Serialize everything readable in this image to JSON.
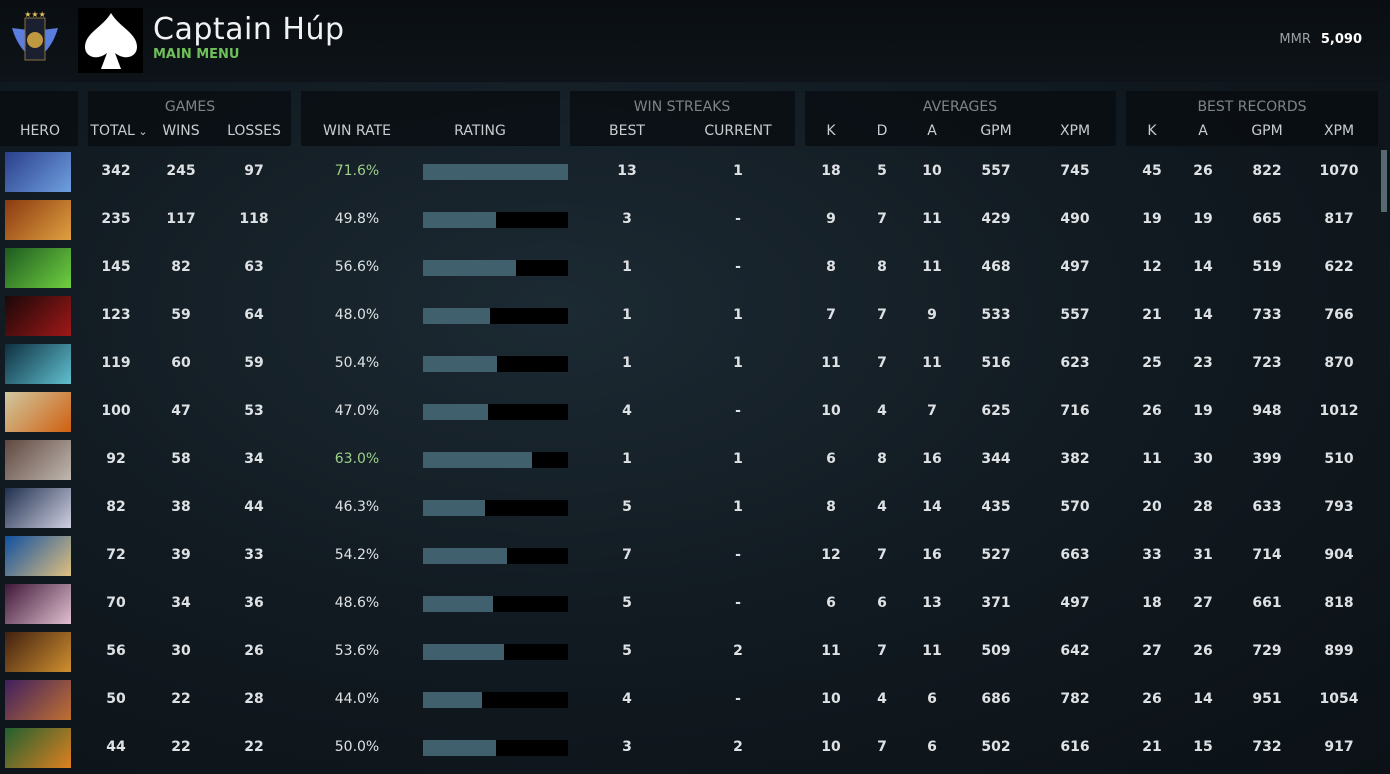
{
  "header": {
    "player_name": "Captain Húp",
    "subtitle": "MAIN MENU",
    "mmr_label": "MMR",
    "mmr_value": "5,090",
    "rank_icon": "immortal-medal-icon",
    "avatar_icon": "spade-icon"
  },
  "groups": {
    "games": "GAMES",
    "win_streaks": "WIN STREAKS",
    "averages": "AVERAGES",
    "best_records": "BEST RECORDS"
  },
  "columns": {
    "hero": "HERO",
    "total": "TOTAL",
    "wins": "WINS",
    "losses": "LOSSES",
    "win_rate": "WIN RATE",
    "rating": "RATING",
    "best": "BEST",
    "current": "CURRENT",
    "k": "K",
    "d": "D",
    "a": "A",
    "gpm": "GPM",
    "xpm": "XPM",
    "bk": "K",
    "ba": "A",
    "bgpm": "GPM",
    "bxpm": "XPM"
  },
  "sort": {
    "column": "total",
    "direction": "descending"
  },
  "colors": {
    "highlight_winrate": "#9ccf8a",
    "bar_fill": "#41606e",
    "bar_bg": "#000000"
  },
  "rows": [
    {
      "colors": [
        "#2a3f8a",
        "#6fa0e0"
      ],
      "total": "342",
      "wins": "245",
      "losses": "97",
      "win_rate": "71.6%",
      "rating": 1.0,
      "hi": true,
      "best": "13",
      "current": "1",
      "k": "18",
      "d": "5",
      "a": "10",
      "gpm": "557",
      "xpm": "745",
      "bk": "45",
      "ba": "26",
      "bgpm": "822",
      "bxpm": "1070"
    },
    {
      "colors": [
        "#8a3a10",
        "#e0a040"
      ],
      "total": "235",
      "wins": "117",
      "losses": "118",
      "win_rate": "49.8%",
      "rating": 0.5,
      "best": "3",
      "current": "-",
      "k": "9",
      "d": "7",
      "a": "11",
      "gpm": "429",
      "xpm": "490",
      "bk": "19",
      "ba": "19",
      "bgpm": "665",
      "bxpm": "817"
    },
    {
      "colors": [
        "#1d5a20",
        "#70d040"
      ],
      "total": "145",
      "wins": "82",
      "losses": "63",
      "win_rate": "56.6%",
      "rating": 0.64,
      "best": "1",
      "current": "-",
      "k": "8",
      "d": "8",
      "a": "11",
      "gpm": "468",
      "xpm": "497",
      "bk": "12",
      "ba": "14",
      "bgpm": "519",
      "bxpm": "622"
    },
    {
      "colors": [
        "#1a0808",
        "#a01818"
      ],
      "total": "123",
      "wins": "59",
      "losses": "64",
      "win_rate": "48.0%",
      "rating": 0.46,
      "best": "1",
      "current": "1",
      "k": "7",
      "d": "7",
      "a": "9",
      "gpm": "533",
      "xpm": "557",
      "bk": "21",
      "ba": "14",
      "bgpm": "733",
      "bxpm": "766"
    },
    {
      "colors": [
        "#0e3040",
        "#60c0d0"
      ],
      "total": "119",
      "wins": "60",
      "losses": "59",
      "win_rate": "50.4%",
      "rating": 0.51,
      "best": "1",
      "current": "1",
      "k": "11",
      "d": "7",
      "a": "11",
      "gpm": "516",
      "xpm": "623",
      "bk": "25",
      "ba": "23",
      "bgpm": "723",
      "bxpm": "870"
    },
    {
      "colors": [
        "#d0c8a0",
        "#d06010"
      ],
      "total": "100",
      "wins": "47",
      "losses": "53",
      "win_rate": "47.0%",
      "rating": 0.45,
      "best": "4",
      "current": "-",
      "k": "10",
      "d": "4",
      "a": "7",
      "gpm": "625",
      "xpm": "716",
      "bk": "26",
      "ba": "19",
      "bgpm": "948",
      "bxpm": "1012"
    },
    {
      "colors": [
        "#604840",
        "#c0b8b0"
      ],
      "total": "92",
      "wins": "58",
      "losses": "34",
      "win_rate": "63.0%",
      "rating": 0.75,
      "hi": true,
      "best": "1",
      "current": "1",
      "k": "6",
      "d": "8",
      "a": "16",
      "gpm": "344",
      "xpm": "382",
      "bk": "11",
      "ba": "30",
      "bgpm": "399",
      "bxpm": "510"
    },
    {
      "colors": [
        "#203050",
        "#d0d0e0"
      ],
      "total": "82",
      "wins": "38",
      "losses": "44",
      "win_rate": "46.3%",
      "rating": 0.43,
      "best": "5",
      "current": "1",
      "k": "8",
      "d": "4",
      "a": "14",
      "gpm": "435",
      "xpm": "570",
      "bk": "20",
      "ba": "28",
      "bgpm": "633",
      "bxpm": "793"
    },
    {
      "colors": [
        "#1050a0",
        "#e0c080"
      ],
      "total": "72",
      "wins": "39",
      "losses": "33",
      "win_rate": "54.2%",
      "rating": 0.58,
      "best": "7",
      "current": "-",
      "k": "12",
      "d": "7",
      "a": "16",
      "gpm": "527",
      "xpm": "663",
      "bk": "33",
      "ba": "31",
      "bgpm": "714",
      "bxpm": "904"
    },
    {
      "colors": [
        "#401838",
        "#e0c0d0"
      ],
      "total": "70",
      "wins": "34",
      "losses": "36",
      "win_rate": "48.6%",
      "rating": 0.48,
      "best": "5",
      "current": "-",
      "k": "6",
      "d": "6",
      "a": "13",
      "gpm": "371",
      "xpm": "497",
      "bk": "18",
      "ba": "27",
      "bgpm": "661",
      "bxpm": "818"
    },
    {
      "colors": [
        "#402010",
        "#d09030"
      ],
      "total": "56",
      "wins": "30",
      "losses": "26",
      "win_rate": "53.6%",
      "rating": 0.56,
      "best": "5",
      "current": "2",
      "k": "11",
      "d": "7",
      "a": "11",
      "gpm": "509",
      "xpm": "642",
      "bk": "27",
      "ba": "26",
      "bgpm": "729",
      "bxpm": "899"
    },
    {
      "colors": [
        "#402060",
        "#c07030"
      ],
      "total": "50",
      "wins": "22",
      "losses": "28",
      "win_rate": "44.0%",
      "rating": 0.41,
      "best": "4",
      "current": "-",
      "k": "10",
      "d": "4",
      "a": "6",
      "gpm": "686",
      "xpm": "782",
      "bk": "26",
      "ba": "14",
      "bgpm": "951",
      "bxpm": "1054"
    },
    {
      "colors": [
        "#206030",
        "#e08020"
      ],
      "total": "44",
      "wins": "22",
      "losses": "22",
      "win_rate": "50.0%",
      "rating": 0.5,
      "best": "3",
      "current": "2",
      "k": "10",
      "d": "7",
      "a": "6",
      "gpm": "502",
      "xpm": "616",
      "bk": "21",
      "ba": "15",
      "bgpm": "732",
      "bxpm": "917"
    }
  ]
}
